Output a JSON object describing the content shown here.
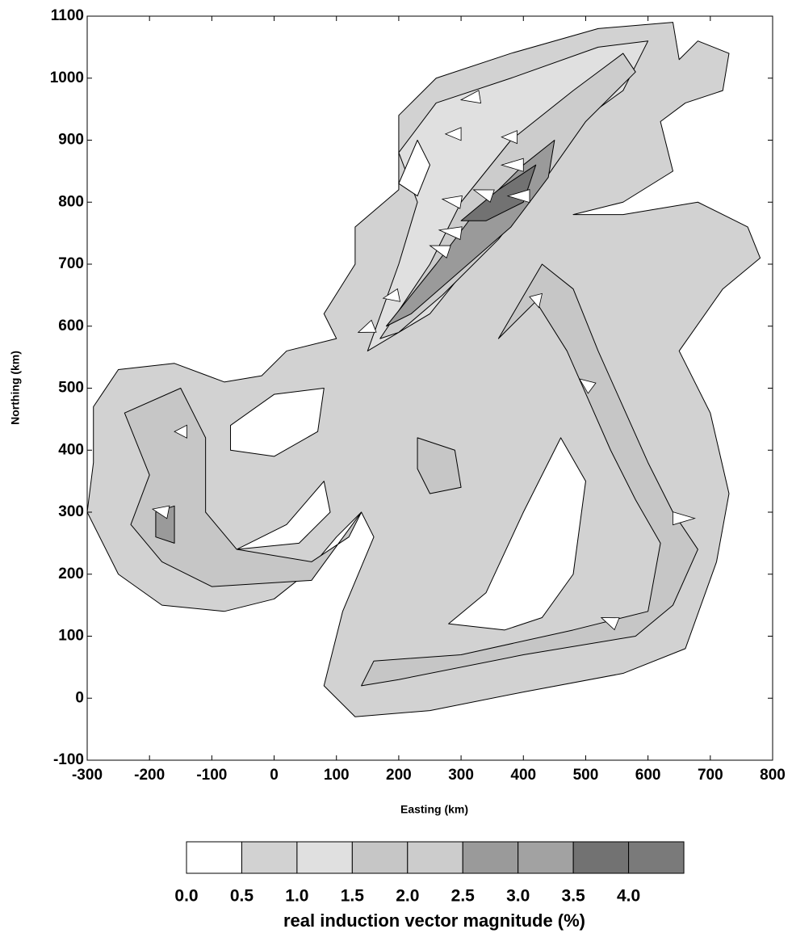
{
  "chart_data": {
    "type": "contour",
    "xlabel": "Easting (km)",
    "ylabel": "Northing (km)",
    "xlim": [
      -300,
      800
    ],
    "xticks": [
      -300,
      -200,
      -100,
      0,
      100,
      200,
      300,
      400,
      500,
      600,
      700,
      800
    ],
    "ylim": [
      -100,
      1100
    ],
    "yticks": [
      -100,
      0,
      100,
      200,
      300,
      400,
      500,
      600,
      700,
      800,
      900,
      1000,
      1100
    ],
    "colorbar": {
      "label": "real induction vector magnitude (%)",
      "levels": [
        {
          "value": 0,
          "label": "0.0"
        },
        {
          "value": 0.5,
          "label": "0.5"
        },
        {
          "value": 1,
          "label": "1.0"
        },
        {
          "value": 1.5,
          "label": "1.5"
        },
        {
          "value": 2,
          "label": "2.0"
        },
        {
          "value": 2.5,
          "label": "2.5"
        },
        {
          "value": 3,
          "label": "3.0"
        },
        {
          "value": 3.5,
          "label": "3.5"
        },
        {
          "value": 4,
          "label": "4.0"
        }
      ],
      "colors": [
        "#ffffff",
        "#d2d2d2",
        "#e0e0e0",
        "#c6c6c6",
        "#cccccc",
        "#9a9a9a",
        "#a2a2a2",
        "#727272",
        "#7a7a7a"
      ]
    },
    "regions": [
      {
        "value": 0.5,
        "points": [
          [
            -290,
            470
          ],
          [
            -250,
            530
          ],
          [
            -160,
            540
          ],
          [
            -80,
            510
          ],
          [
            -20,
            520
          ],
          [
            20,
            560
          ],
          [
            100,
            580
          ],
          [
            80,
            620
          ],
          [
            130,
            700
          ],
          [
            130,
            760
          ],
          [
            200,
            820
          ],
          [
            200,
            940
          ],
          [
            260,
            1000
          ],
          [
            380,
            1040
          ],
          [
            520,
            1080
          ],
          [
            640,
            1090
          ],
          [
            650,
            1030
          ],
          [
            680,
            1060
          ],
          [
            730,
            1040
          ],
          [
            720,
            980
          ],
          [
            660,
            960
          ],
          [
            620,
            930
          ],
          [
            640,
            850
          ],
          [
            560,
            800
          ],
          [
            480,
            780
          ],
          [
            560,
            780
          ],
          [
            680,
            800
          ],
          [
            760,
            760
          ],
          [
            780,
            710
          ],
          [
            720,
            660
          ],
          [
            650,
            560
          ],
          [
            700,
            460
          ],
          [
            730,
            330
          ],
          [
            710,
            220
          ],
          [
            660,
            80
          ],
          [
            560,
            40
          ],
          [
            400,
            10
          ],
          [
            250,
            -20
          ],
          [
            130,
            -30
          ],
          [
            80,
            20
          ],
          [
            110,
            140
          ],
          [
            160,
            260
          ],
          [
            140,
            300
          ],
          [
            100,
            260
          ],
          [
            50,
            200
          ],
          [
            0,
            160
          ],
          [
            -80,
            140
          ],
          [
            -180,
            150
          ],
          [
            -250,
            200
          ],
          [
            -300,
            300
          ],
          [
            -290,
            380
          ]
        ]
      },
      {
        "value": 0,
        "points": [
          [
            -70,
            440
          ],
          [
            0,
            490
          ],
          [
            80,
            500
          ],
          [
            70,
            430
          ],
          [
            0,
            390
          ],
          [
            -70,
            400
          ]
        ]
      },
      {
        "value": 0,
        "points": [
          [
            -60,
            240
          ],
          [
            20,
            280
          ],
          [
            80,
            350
          ],
          [
            90,
            300
          ],
          [
            40,
            250
          ]
        ]
      },
      {
        "value": 0,
        "points": [
          [
            280,
            120
          ],
          [
            340,
            170
          ],
          [
            400,
            300
          ],
          [
            460,
            420
          ],
          [
            500,
            350
          ],
          [
            480,
            200
          ],
          [
            430,
            130
          ],
          [
            370,
            110
          ]
        ]
      },
      {
        "value": 1,
        "points": [
          [
            150,
            560
          ],
          [
            200,
            700
          ],
          [
            230,
            800
          ],
          [
            200,
            880
          ],
          [
            260,
            960
          ],
          [
            380,
            1000
          ],
          [
            520,
            1050
          ],
          [
            600,
            1060
          ],
          [
            560,
            980
          ],
          [
            450,
            900
          ],
          [
            400,
            800
          ],
          [
            330,
            720
          ],
          [
            250,
            620
          ]
        ]
      },
      {
        "value": 1.5,
        "points": [
          [
            360,
            580
          ],
          [
            430,
            700
          ],
          [
            480,
            660
          ],
          [
            520,
            560
          ],
          [
            600,
            380
          ],
          [
            640,
            300
          ],
          [
            680,
            240
          ],
          [
            640,
            150
          ],
          [
            580,
            100
          ],
          [
            400,
            70
          ],
          [
            200,
            30
          ],
          [
            140,
            20
          ],
          [
            160,
            60
          ],
          [
            300,
            70
          ],
          [
            480,
            110
          ],
          [
            600,
            140
          ],
          [
            620,
            250
          ],
          [
            580,
            320
          ],
          [
            540,
            400
          ],
          [
            470,
            560
          ],
          [
            420,
            640
          ]
        ]
      },
      {
        "value": 1.5,
        "points": [
          [
            -240,
            460
          ],
          [
            -150,
            500
          ],
          [
            -110,
            420
          ],
          [
            -110,
            300
          ],
          [
            -60,
            240
          ],
          [
            60,
            220
          ],
          [
            120,
            260
          ],
          [
            140,
            300
          ],
          [
            60,
            190
          ],
          [
            -100,
            180
          ],
          [
            -180,
            220
          ],
          [
            -230,
            280
          ],
          [
            -200,
            360
          ]
        ]
      },
      {
        "value": 1.5,
        "points": [
          [
            230,
            420
          ],
          [
            290,
            400
          ],
          [
            300,
            340
          ],
          [
            250,
            330
          ],
          [
            230,
            370
          ]
        ]
      },
      {
        "value": 2,
        "points": [
          [
            170,
            580
          ],
          [
            250,
            700
          ],
          [
            300,
            800
          ],
          [
            380,
            900
          ],
          [
            480,
            980
          ],
          [
            560,
            1040
          ],
          [
            580,
            1010
          ],
          [
            500,
            930
          ],
          [
            430,
            830
          ],
          [
            360,
            740
          ],
          [
            270,
            650
          ],
          [
            200,
            590
          ]
        ]
      },
      {
        "value": 2.5,
        "points": [
          [
            180,
            600
          ],
          [
            260,
            700
          ],
          [
            320,
            780
          ],
          [
            400,
            860
          ],
          [
            450,
            900
          ],
          [
            440,
            840
          ],
          [
            380,
            760
          ],
          [
            300,
            690
          ],
          [
            220,
            620
          ]
        ]
      },
      {
        "value": 2.5,
        "points": [
          [
            -190,
            300
          ],
          [
            -160,
            310
          ],
          [
            -160,
            250
          ],
          [
            -190,
            260
          ]
        ]
      },
      {
        "value": 3.5,
        "points": [
          [
            300,
            770
          ],
          [
            360,
            820
          ],
          [
            420,
            860
          ],
          [
            400,
            800
          ],
          [
            340,
            770
          ]
        ]
      },
      {
        "value": 0,
        "points": [
          [
            200,
            830
          ],
          [
            230,
            900
          ],
          [
            250,
            860
          ],
          [
            230,
            810
          ]
        ]
      }
    ],
    "arrows": [
      {
        "x": 160,
        "y": 600,
        "dx": -25,
        "dy": -10
      },
      {
        "x": 200,
        "y": 650,
        "dx": -25,
        "dy": -5
      },
      {
        "x": 280,
        "y": 720,
        "dx": -30,
        "dy": 10
      },
      {
        "x": 300,
        "y": 750,
        "dx": -35,
        "dy": 5
      },
      {
        "x": 350,
        "y": 810,
        "dx": -30,
        "dy": 10
      },
      {
        "x": 410,
        "y": 810,
        "dx": -35,
        "dy": 0
      },
      {
        "x": 300,
        "y": 800,
        "dx": -30,
        "dy": 5
      },
      {
        "x": 400,
        "y": 860,
        "dx": -35,
        "dy": 0
      },
      {
        "x": 330,
        "y": 970,
        "dx": -30,
        "dy": -5
      },
      {
        "x": 390,
        "y": 905,
        "dx": -25,
        "dy": 0
      },
      {
        "x": 300,
        "y": 910,
        "dx": -25,
        "dy": 0
      },
      {
        "x": 640,
        "y": 290,
        "dx": 35,
        "dy": 0
      },
      {
        "x": 510,
        "y": 500,
        "dx": -20,
        "dy": 15
      },
      {
        "x": -170,
        "y": 300,
        "dx": -25,
        "dy": 5
      },
      {
        "x": 550,
        "y": 120,
        "dx": -25,
        "dy": 10
      },
      {
        "x": 420,
        "y": 650,
        "dx": 5,
        "dy": -20
      },
      {
        "x": -140,
        "y": 430,
        "dx": -20,
        "dy": 0
      }
    ]
  }
}
